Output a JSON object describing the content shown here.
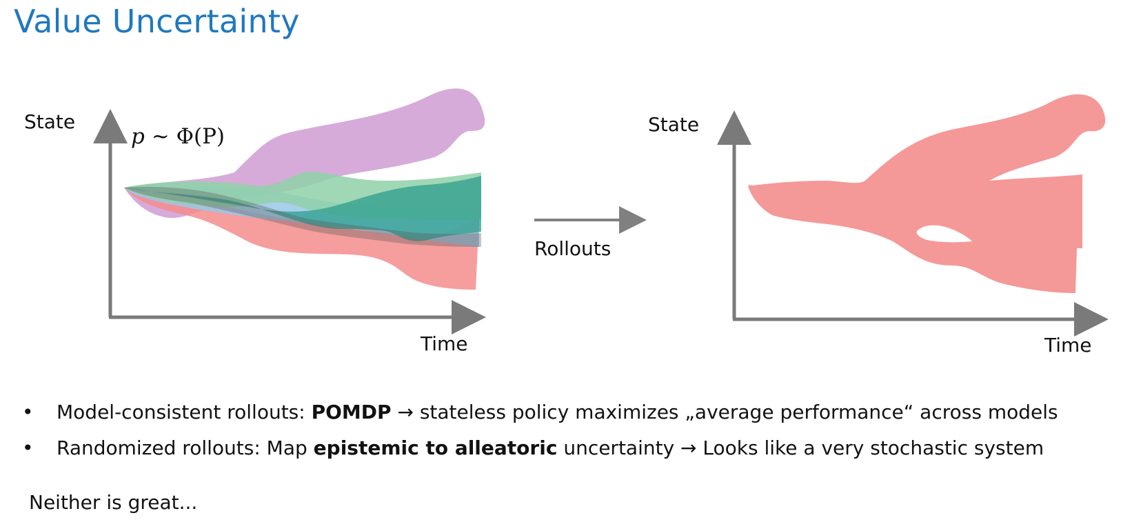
{
  "title": "Value Uncertainty",
  "left_diagram": {
    "y_axis_label": "State",
    "x_axis_label": "Time",
    "formula": {
      "var": "p",
      "rel": "~",
      "dist": "Φ(P)"
    },
    "colors": [
      "#c98fcc",
      "#f48c8c",
      "#9ac8e6",
      "#8fd1a8",
      "#2e9e8e"
    ]
  },
  "arrow_label": "Rollouts",
  "right_diagram": {
    "y_axis_label": "State",
    "x_axis_label": "Time",
    "color": "#f59898"
  },
  "bullets": [
    {
      "pre": "Model-consistent rollouts: ",
      "bold": "POMDP",
      "post": " stateless policy maximizes „average performance“ across models"
    },
    {
      "pre": "Randomized rollouts: Map ",
      "bold": "epistemic to alleatoric",
      "post": " uncertainty  Looks like a very stochastic system"
    }
  ],
  "note": "Neither is great..."
}
